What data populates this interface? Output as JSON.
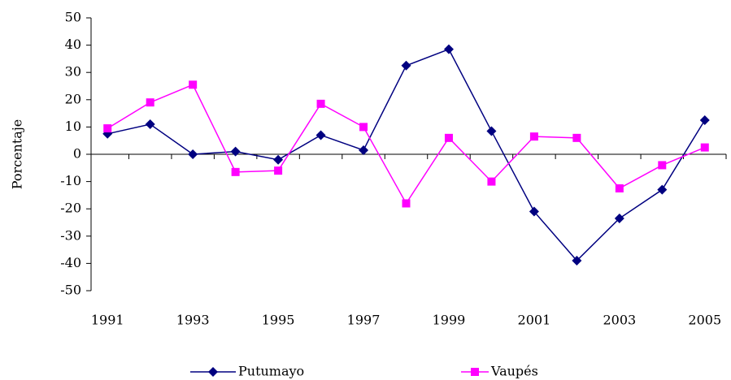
{
  "chart_data": {
    "type": "line",
    "y_label": "Porcentaje",
    "categories": [
      "1991",
      null,
      "1993",
      null,
      "1995",
      null,
      "1997",
      null,
      "1999",
      null,
      "2001",
      null,
      "2003",
      null,
      "2005"
    ],
    "series": [
      {
        "name": "Putumayo",
        "color": "#000080",
        "marker": "diamond",
        "values": [
          7.5,
          11,
          0,
          1,
          -2,
          7,
          1.5,
          32.5,
          38.5,
          8.5,
          -21,
          -39,
          -23.5,
          -13,
          12.5
        ]
      },
      {
        "name": "Vaupés",
        "color": "#ff00ff",
        "marker": "square",
        "values": [
          9.5,
          19,
          25.5,
          -6.5,
          -6,
          18.5,
          10,
          -18,
          6,
          -10,
          6.5,
          6,
          -12.5,
          -4,
          2.5
        ]
      }
    ],
    "ylim": [
      -50,
      50
    ],
    "yticks": [
      -50,
      -40,
      -30,
      -20,
      -10,
      0,
      10,
      20,
      30,
      40,
      50
    ],
    "grid": false
  }
}
